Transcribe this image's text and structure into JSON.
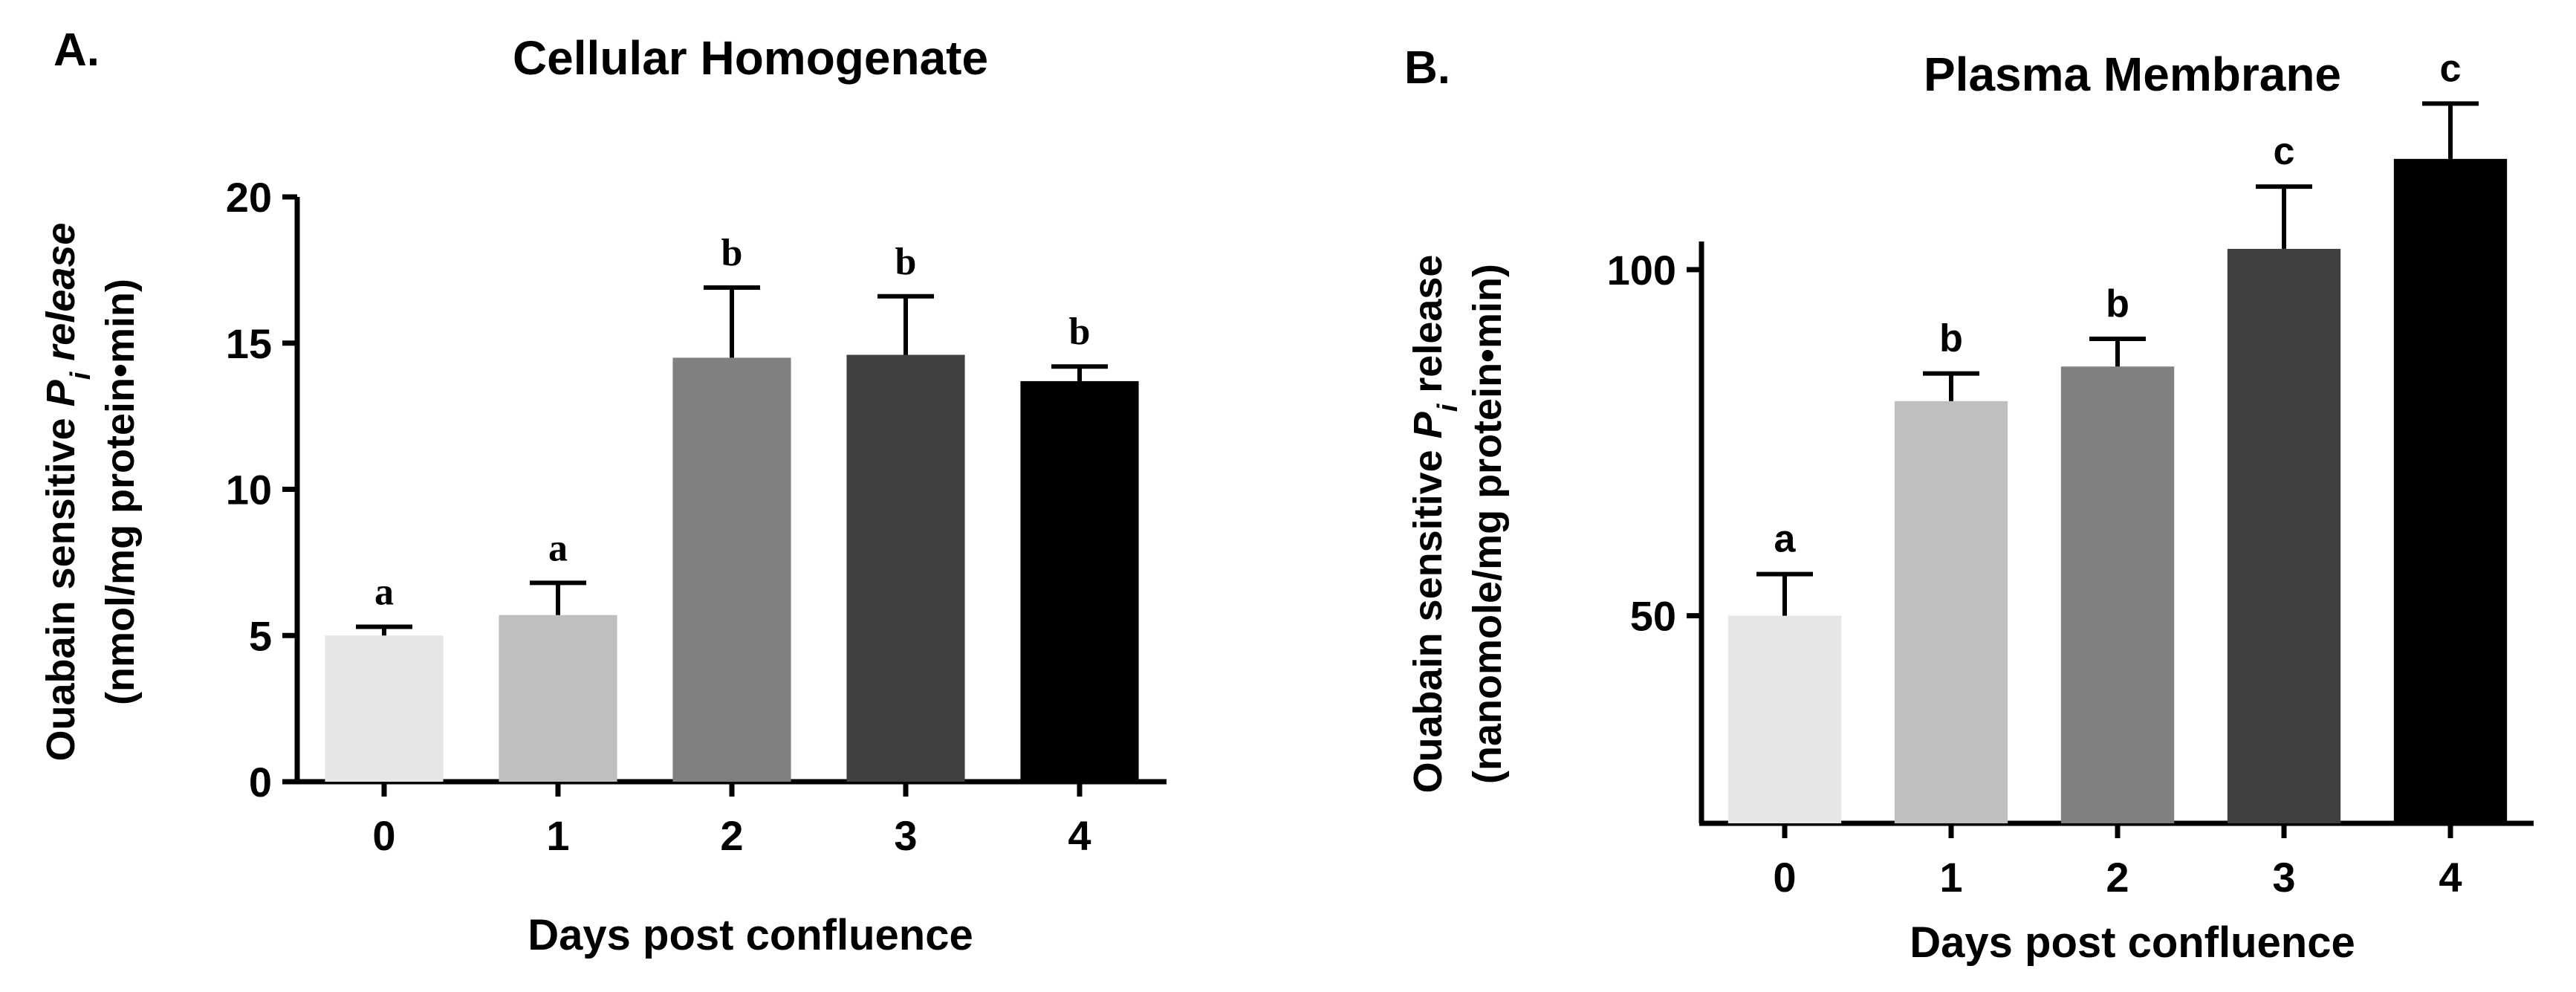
{
  "chart_data": [
    {
      "type": "bar",
      "panel_label": "A.",
      "title": "Cellular Homogenate",
      "xlabel": "Days post confluence",
      "ylabel_line1_before": "Ouabain sensitive ",
      "ylabel_italic_symbol": "P",
      "ylabel_subscript": "i",
      "ylabel_italic_word": " release",
      "ylabel_line2": "(nmol/mg protein•min)",
      "categories": [
        "0",
        "1",
        "2",
        "3",
        "4"
      ],
      "values": [
        5.0,
        5.7,
        14.5,
        14.6,
        13.7
      ],
      "errors": [
        0.3,
        1.1,
        2.4,
        2.0,
        0.5
      ],
      "significance": [
        "a",
        "a",
        "b",
        "b",
        "b"
      ],
      "bar_colors": [
        "#e6e6e6",
        "#bfbfbf",
        "#808080",
        "#404040",
        "#000000"
      ],
      "ylim": [
        0,
        20
      ],
      "yticks": [
        0,
        5,
        10,
        15,
        20
      ],
      "ytick_labels": [
        "0",
        "5",
        "10",
        "15",
        "20"
      ]
    },
    {
      "type": "bar",
      "panel_label": "B.",
      "title": "Plasma Membrane",
      "xlabel": "Days post confluence",
      "ylabel_line1_before": "Ouabain sensitive ",
      "ylabel_italic_symbol": "P",
      "ylabel_subscript": "i",
      "ylabel_italic_word": " release",
      "ylabel_line2": "(nanomole/mg protein•min)",
      "categories": [
        "0",
        "1",
        "2",
        "3",
        "4"
      ],
      "values": [
        50,
        81,
        86,
        103,
        116
      ],
      "errors": [
        6,
        4,
        4,
        9,
        8
      ],
      "significance": [
        "a",
        "b",
        "b",
        "c",
        "c"
      ],
      "bar_colors": [
        "#e6e6e6",
        "#bfbfbf",
        "#808080",
        "#404040",
        "#000000"
      ],
      "ylim": [
        20,
        125
      ],
      "yticks": [
        50,
        100
      ],
      "ytick_labels": [
        "50",
        "100"
      ]
    }
  ]
}
